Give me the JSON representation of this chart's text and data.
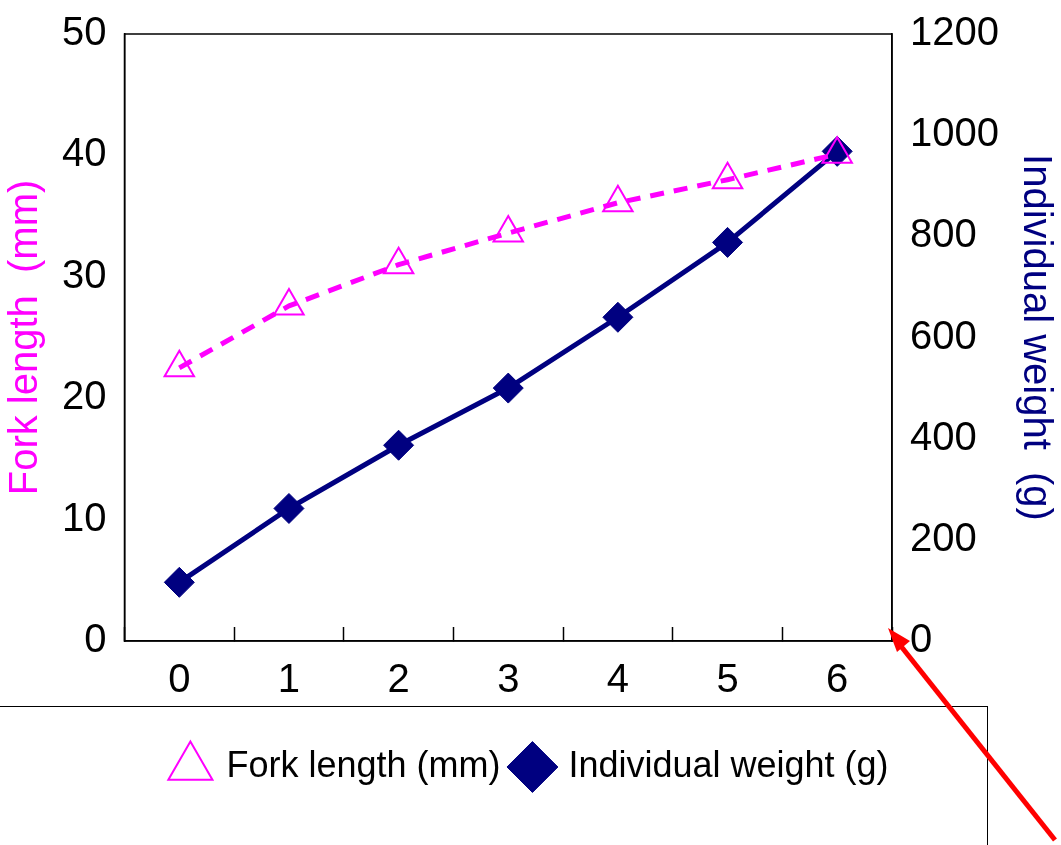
{
  "chart_data": {
    "type": "line",
    "categories": [
      "0",
      "1",
      "2",
      "3",
      "4",
      "5",
      "6"
    ],
    "ylabel": "Fork length  (mm)",
    "y2label": "Individual weight  (g)",
    "ylim": [
      0,
      50
    ],
    "yticks": [
      0,
      10,
      20,
      30,
      40,
      50
    ],
    "y2lim": [
      0,
      1200
    ],
    "y2ticks": [
      0,
      200,
      400,
      600,
      800,
      1000,
      1200
    ],
    "legend": "bottom",
    "grid": false,
    "series": [
      {
        "name": "Fork length (mm)",
        "color": "#ff00ff",
        "marker": "triangle",
        "line_style": "dashed",
        "values": [
          22.5,
          27.6,
          31.0,
          33.6,
          36.1,
          38.0,
          40.1
        ]
      },
      {
        "name": "Individual weight (g)",
        "color": "#000080",
        "marker": "diamond",
        "line_style": "solid",
        "axis": "y2",
        "values": [
          116,
          262,
          387,
          500,
          640,
          788,
          968
        ]
      }
    ]
  }
}
